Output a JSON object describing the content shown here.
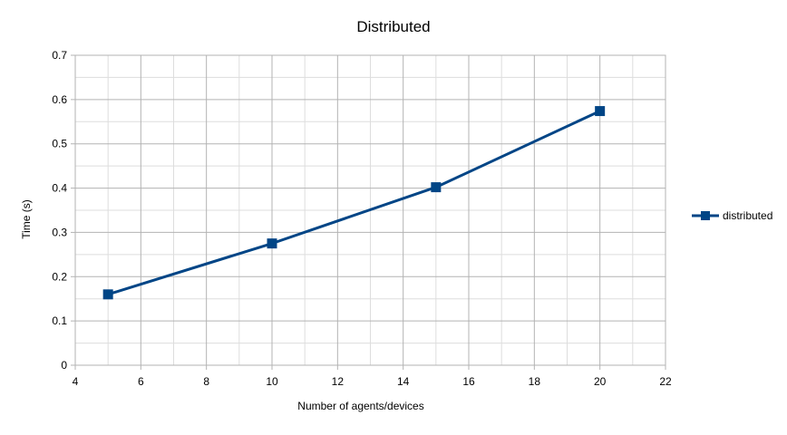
{
  "chart_data": {
    "type": "line",
    "title": "Distributed",
    "xlabel": "Number of agents/devices",
    "ylabel": "Time (s)",
    "xlim": [
      4,
      22
    ],
    "ylim": [
      0,
      0.7
    ],
    "x_ticks": [
      4,
      6,
      8,
      10,
      12,
      14,
      16,
      18,
      20,
      22
    ],
    "y_ticks": [
      0,
      0.1,
      0.2,
      0.3,
      0.4,
      0.5,
      0.6,
      0.7
    ],
    "x_tick_labels": [
      "4",
      "6",
      "8",
      "10",
      "12",
      "14",
      "16",
      "18",
      "20",
      "22"
    ],
    "y_tick_labels": [
      "0",
      "0.1",
      "0.2",
      "0.3",
      "0.4",
      "0.5",
      "0.6",
      "0.7"
    ],
    "grid": true,
    "minor_grid": true,
    "legend_position": "right",
    "series": [
      {
        "name": "distributed",
        "color": "#004586",
        "marker": "square",
        "x": [
          5,
          10,
          15,
          20
        ],
        "y": [
          0.16,
          0.275,
          0.402,
          0.574
        ]
      }
    ]
  }
}
